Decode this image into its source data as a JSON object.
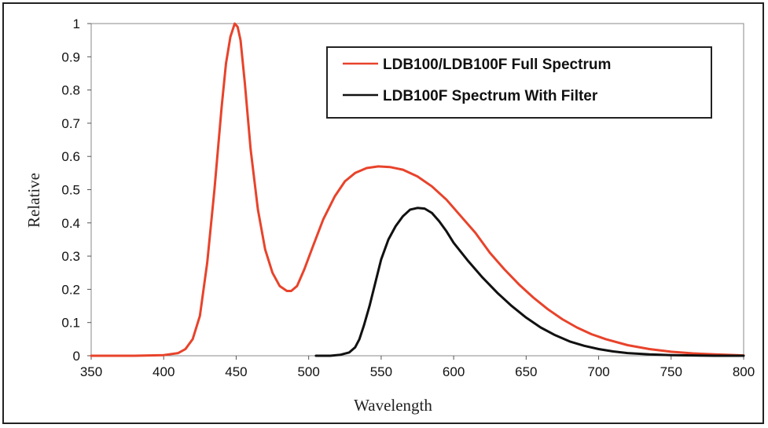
{
  "chart_data": {
    "type": "line",
    "title": "",
    "xlabel": "Wavelength",
    "ylabel": "Relative",
    "xlim": [
      350,
      800
    ],
    "ylim": [
      0,
      1
    ],
    "xticks": [
      "350",
      "400",
      "450",
      "500",
      "550",
      "600",
      "650",
      "700",
      "750",
      "800"
    ],
    "yticks": [
      "0",
      "0.1",
      "0.2",
      "0.3",
      "0.4",
      "0.5",
      "0.6",
      "0.7",
      "0.8",
      "0.9",
      "1"
    ],
    "grid": false,
    "legend_position": "top-right",
    "series": [
      {
        "name": "LDB100/LDB100F Full Spectrum",
        "color": "#e8432b",
        "x": [
          350,
          380,
          400,
          410,
          415,
          420,
          425,
          430,
          435,
          440,
          443,
          446,
          449,
          451,
          453,
          456,
          460,
          465,
          470,
          475,
          480,
          485,
          488,
          492,
          497,
          503,
          510,
          518,
          525,
          532,
          540,
          548,
          556,
          565,
          575,
          585,
          595,
          605,
          615,
          625,
          635,
          645,
          655,
          665,
          675,
          685,
          695,
          705,
          720,
          735,
          750,
          765,
          780,
          795,
          800
        ],
        "y": [
          0,
          0,
          0.002,
          0.008,
          0.02,
          0.05,
          0.12,
          0.28,
          0.5,
          0.75,
          0.88,
          0.96,
          1.0,
          0.99,
          0.95,
          0.82,
          0.62,
          0.44,
          0.32,
          0.25,
          0.21,
          0.195,
          0.195,
          0.21,
          0.26,
          0.33,
          0.41,
          0.48,
          0.525,
          0.55,
          0.565,
          0.57,
          0.568,
          0.56,
          0.54,
          0.51,
          0.47,
          0.42,
          0.37,
          0.31,
          0.26,
          0.215,
          0.175,
          0.14,
          0.11,
          0.085,
          0.065,
          0.05,
          0.032,
          0.02,
          0.012,
          0.007,
          0.004,
          0.002,
          0.001
        ]
      },
      {
        "name": "LDB100F Spectrum With Filter",
        "color": "#111111",
        "x": [
          505,
          515,
          522,
          528,
          532,
          535,
          538,
          542,
          546,
          550,
          555,
          560,
          565,
          570,
          575,
          580,
          585,
          590,
          595,
          600,
          610,
          620,
          630,
          640,
          650,
          660,
          670,
          680,
          690,
          700,
          710,
          720,
          735,
          750,
          765,
          780,
          800
        ],
        "y": [
          0,
          0,
          0.003,
          0.01,
          0.025,
          0.05,
          0.09,
          0.15,
          0.22,
          0.29,
          0.35,
          0.39,
          0.42,
          0.44,
          0.445,
          0.443,
          0.43,
          0.405,
          0.375,
          0.34,
          0.285,
          0.235,
          0.19,
          0.15,
          0.115,
          0.085,
          0.062,
          0.043,
          0.03,
          0.02,
          0.013,
          0.008,
          0.004,
          0.002,
          0.001,
          0,
          0
        ]
      }
    ]
  }
}
